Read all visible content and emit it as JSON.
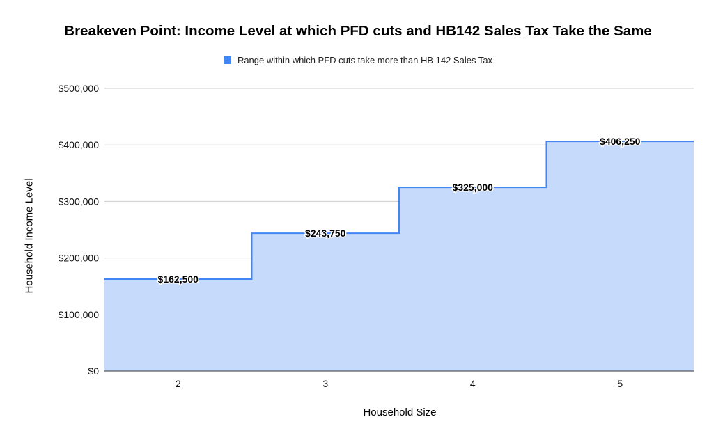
{
  "chart_data": {
    "type": "area",
    "title": "Breakeven Point: Income Level at which PFD cuts and HB142 Sales Tax Take the Same",
    "xlabel": "Household Size",
    "ylabel": "Household Income Level",
    "categories": [
      "2",
      "3",
      "4",
      "5"
    ],
    "series": [
      {
        "name": "Range within which PFD cuts take more than HB 142 Sales Tax",
        "values": [
          162500,
          243750,
          325000,
          406250
        ],
        "labels": [
          "$162,500",
          "$243,750",
          "$325,000",
          "$406,250"
        ],
        "color": "#4285f4",
        "fill": "#c6dafc"
      }
    ],
    "ylim": [
      0,
      500000
    ],
    "yticks": [
      0,
      100000,
      200000,
      300000,
      400000,
      500000
    ],
    "ytick_labels": [
      "$0",
      "$100,000",
      "$200,000",
      "$300,000",
      "$400,000",
      "$500,000"
    ],
    "grid": true,
    "legend_position": "top",
    "step": true
  }
}
